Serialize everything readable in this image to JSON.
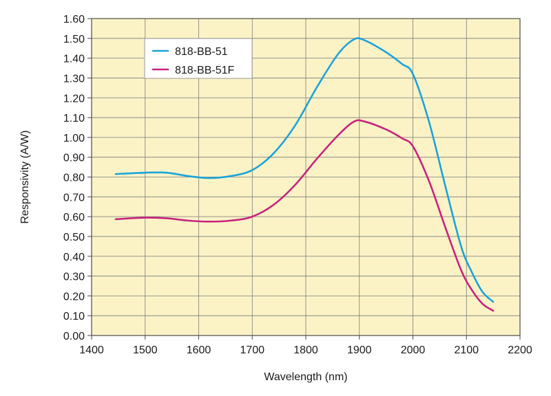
{
  "chart_data": {
    "type": "line",
    "title": "",
    "xlabel": "Wavelength (nm)",
    "ylabel": "Responsivity (A/W)",
    "xlim": [
      1400,
      2200
    ],
    "ylim": [
      0,
      1.6
    ],
    "xticks": [
      1400,
      1500,
      1600,
      1700,
      1800,
      1900,
      2000,
      2100,
      2200
    ],
    "xtick_labels": [
      "1400",
      "1500",
      "1600",
      "1700",
      "1800",
      "1900",
      "2000",
      "2100",
      "2200"
    ],
    "yticks": [
      0,
      0.1,
      0.2,
      0.3,
      0.4,
      0.5,
      0.6,
      0.7,
      0.8,
      0.9,
      1.0,
      1.1,
      1.2,
      1.3,
      1.4,
      1.5,
      1.6
    ],
    "ytick_labels": [
      "0.00",
      "0.10",
      "0.20",
      "0.30",
      "0.40",
      "0.50",
      "0.60",
      "0.70",
      "0.80",
      "0.90",
      "1.00",
      "1.10",
      "1.20",
      "1.30",
      "1.40",
      "1.50",
      "1.60"
    ],
    "grid": true,
    "legend_position": "top-left",
    "plot_background": "#fbf3c6",
    "grid_color": "#7a7a7a",
    "series": [
      {
        "name": "818-BB-51",
        "color": "#1ba3dc",
        "x": [
          1445,
          1500,
          1540,
          1580,
          1620,
          1660,
          1700,
          1740,
          1780,
          1820,
          1860,
          1890,
          1910,
          1950,
          1980,
          2000,
          2030,
          2060,
          2090,
          2110,
          2130,
          2150
        ],
        "y": [
          0.815,
          0.822,
          0.822,
          0.805,
          0.795,
          0.805,
          0.835,
          0.92,
          1.06,
          1.25,
          1.42,
          1.495,
          1.49,
          1.43,
          1.37,
          1.32,
          1.08,
          0.76,
          0.45,
          0.32,
          0.22,
          0.17
        ]
      },
      {
        "name": "818-BB-51F",
        "color": "#c7237e",
        "x": [
          1445,
          1500,
          1540,
          1580,
          1620,
          1660,
          1700,
          1740,
          1780,
          1820,
          1860,
          1890,
          1910,
          1950,
          1980,
          2000,
          2030,
          2060,
          2090,
          2110,
          2130,
          2150
        ],
        "y": [
          0.587,
          0.595,
          0.592,
          0.58,
          0.575,
          0.58,
          0.6,
          0.66,
          0.76,
          0.89,
          1.01,
          1.08,
          1.08,
          1.04,
          0.995,
          0.955,
          0.78,
          0.55,
          0.33,
          0.23,
          0.16,
          0.125
        ]
      }
    ]
  }
}
